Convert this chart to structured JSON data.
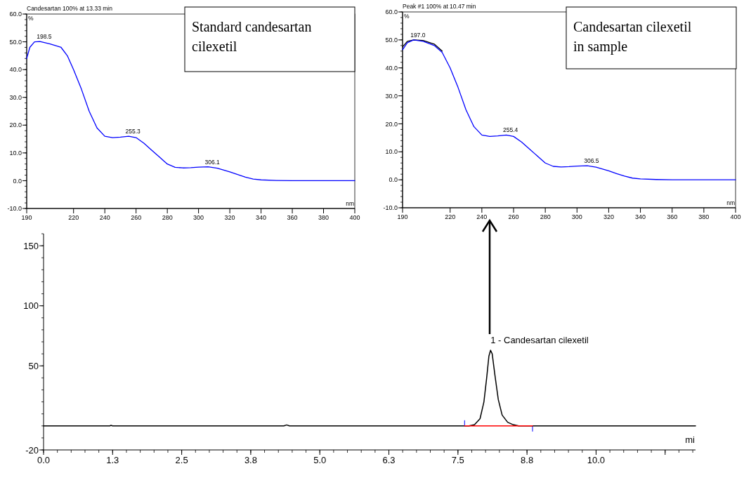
{
  "chart_data": [
    {
      "type": "line",
      "title": "Candesartan   100% at 13.33 min",
      "ylabel": "%",
      "xlabel": "nm",
      "xlim": [
        190,
        400
      ],
      "ylim": [
        -10,
        60
      ],
      "xticks": [
        190,
        220,
        240,
        260,
        280,
        300,
        320,
        340,
        360,
        380,
        400
      ],
      "yticks": [
        {
          "value": -10,
          "label": "-10.0"
        },
        {
          "value": 0,
          "label": "0.0"
        },
        {
          "value": 10,
          "label": "10.0"
        },
        {
          "value": 20,
          "label": "20.0"
        },
        {
          "value": 30,
          "label": "30.0"
        },
        {
          "value": 40,
          "label": "40.0"
        },
        {
          "value": 50,
          "label": "50.0"
        },
        {
          "value": 60,
          "label": "60.0"
        }
      ],
      "series": [
        {
          "color": "#0000ff",
          "x": [
            190,
            192,
            195,
            198.5,
            205,
            212,
            216,
            220,
            225,
            230,
            235,
            240,
            245,
            250,
            255.3,
            260,
            265,
            270,
            275,
            280,
            285,
            290,
            295,
            300,
            306.1,
            312,
            320,
            325,
            330,
            335,
            340,
            350,
            360,
            400
          ],
          "values": [
            44,
            48,
            50,
            50.1,
            49.2,
            48,
            45,
            40,
            33,
            25,
            19,
            16,
            15.5,
            15.7,
            16,
            15.5,
            13.5,
            11,
            8.5,
            6,
            4.8,
            4.6,
            4.7,
            4.9,
            5,
            4.5,
            3.2,
            2.2,
            1.3,
            0.6,
            0.3,
            0.1,
            0,
            0
          ]
        }
      ],
      "annotations": [
        {
          "text": "198.5",
          "x": 198.5,
          "y": 50.1
        },
        {
          "text": "255.3",
          "x": 255.3,
          "y": 16
        },
        {
          "text": "306.1",
          "x": 306.1,
          "y": 5
        },
        "Standard candesartan cilexetil"
      ]
    },
    {
      "type": "line",
      "title": "Peak #1   100% at 10.47 min",
      "ylabel": "%",
      "xlabel": "nm",
      "xlim": [
        190,
        400
      ],
      "ylim": [
        -10,
        60
      ],
      "xticks": [
        190,
        220,
        240,
        260,
        280,
        300,
        320,
        340,
        360,
        380,
        400
      ],
      "yticks": [
        {
          "value": -10,
          "label": "-10.0"
        },
        {
          "value": 0,
          "label": "0.0"
        },
        {
          "value": 10,
          "label": "10.0"
        },
        {
          "value": 20,
          "label": "20.0"
        },
        {
          "value": 30,
          "label": "30.0"
        },
        {
          "value": 40,
          "label": "40.0"
        },
        {
          "value": 50,
          "label": "50.0"
        },
        {
          "value": 60,
          "label": "60.0"
        }
      ],
      "series": [
        {
          "color": "#000000",
          "x": [
            190,
            193,
            197,
            203,
            210,
            215
          ],
          "values": [
            47.5,
            49.5,
            50,
            49.8,
            48.5,
            46
          ]
        },
        {
          "color": "#0000ff",
          "x": [
            190,
            193,
            197,
            203,
            210,
            215,
            220,
            225,
            230,
            235,
            240,
            245,
            250,
            255.4,
            260,
            265,
            270,
            275,
            280,
            285,
            290,
            295,
            300,
            306.5,
            312,
            320,
            325,
            330,
            335,
            340,
            350,
            360,
            400
          ],
          "values": [
            46.5,
            49,
            50,
            49.5,
            48,
            45.5,
            40,
            33,
            25,
            19,
            16,
            15.5,
            15.7,
            16,
            15.5,
            13.5,
            11,
            8.5,
            6,
            4.8,
            4.6,
            4.7,
            4.9,
            5,
            4.5,
            3.2,
            2.2,
            1.3,
            0.6,
            0.3,
            0.1,
            0,
            0
          ]
        }
      ],
      "annotations": [
        {
          "text": "197.0",
          "x": 197,
          "y": 50
        },
        {
          "text": "255.4",
          "x": 255.4,
          "y": 16
        },
        {
          "text": "306.5",
          "x": 306.5,
          "y": 5
        },
        "Candesartan cilexetil in sample"
      ]
    },
    {
      "type": "line",
      "xlabel": "mi",
      "xlim": [
        0,
        11.8
      ],
      "ylim": [
        -20,
        160
      ],
      "xticks": [
        {
          "value": 0,
          "label": "0.0"
        },
        {
          "value": 1.25,
          "label": "1.3"
        },
        {
          "value": 2.5,
          "label": "2.5"
        },
        {
          "value": 3.75,
          "label": "3.8"
        },
        {
          "value": 5,
          "label": "5.0"
        },
        {
          "value": 6.25,
          "label": "6.3"
        },
        {
          "value": 7.5,
          "label": "7.5"
        },
        {
          "value": 8.75,
          "label": "8.8"
        },
        {
          "value": 10,
          "label": "10.0"
        },
        {
          "value": 11.25,
          "label": null
        }
      ],
      "yticks": [
        -20,
        50,
        100,
        150
      ],
      "series": [
        {
          "color": "#000000",
          "x": [
            0,
            1.2,
            1.22,
            1.25,
            4.35,
            4.4,
            4.45,
            7.7,
            7.8,
            7.9,
            7.97,
            8.02,
            8.06,
            8.09,
            8.12,
            8.17,
            8.23,
            8.3,
            8.4,
            8.5,
            8.6,
            11.8
          ],
          "values": [
            0,
            0,
            0.5,
            0,
            0,
            0.8,
            0,
            0,
            1,
            6,
            20,
            40,
            58,
            63,
            60,
            42,
            22,
            9,
            3,
            1,
            0,
            0
          ]
        },
        {
          "color": "#ff0000",
          "x": [
            7.62,
            8.85
          ],
          "values": [
            0,
            0
          ]
        }
      ],
      "annotations": [
        {
          "text": "1 - Candesartan cilexetil",
          "x": 8.09,
          "y": 63
        }
      ]
    }
  ]
}
